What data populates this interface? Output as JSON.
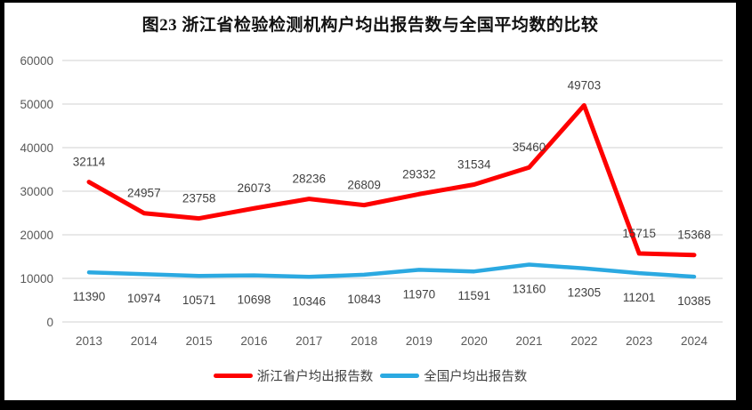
{
  "colors": {
    "zhejiang_red": "#FE0000",
    "national_blue": "#2BA9E1",
    "gridline": "#D9D9D9",
    "axis_text": "#595959",
    "data_label_text": "#404040",
    "frame": "#000000",
    "background": "#FFFFFF"
  },
  "chart_data": {
    "type": "line",
    "title": "图23  浙江省检验检测机构户均出报告数与全国平均数的比较",
    "categories": [
      "2013",
      "2014",
      "2015",
      "2016",
      "2017",
      "2018",
      "2019",
      "2020",
      "2021",
      "2022",
      "2023",
      "2024"
    ],
    "series": [
      {
        "name": "浙江省户均出报告数",
        "color": "#FE0000",
        "label_position": "above",
        "values": [
          32114,
          24957,
          23758,
          26073,
          28236,
          26809,
          29332,
          31534,
          35460,
          49703,
          15715,
          15368
        ]
      },
      {
        "name": "全国户均出报告数",
        "color": "#2BA9E1",
        "label_position": "below",
        "values": [
          11390,
          10974,
          10571,
          10698,
          10346,
          10843,
          11970,
          11591,
          13160,
          12305,
          11201,
          10385
        ]
      }
    ],
    "ylim": [
      0,
      60000
    ],
    "ytick_step": 10000,
    "yticks": [
      "0",
      "10000",
      "20000",
      "30000",
      "40000",
      "50000",
      "60000"
    ],
    "grid": "horizontal",
    "legend_position": "bottom",
    "data_labels_visible": true
  }
}
